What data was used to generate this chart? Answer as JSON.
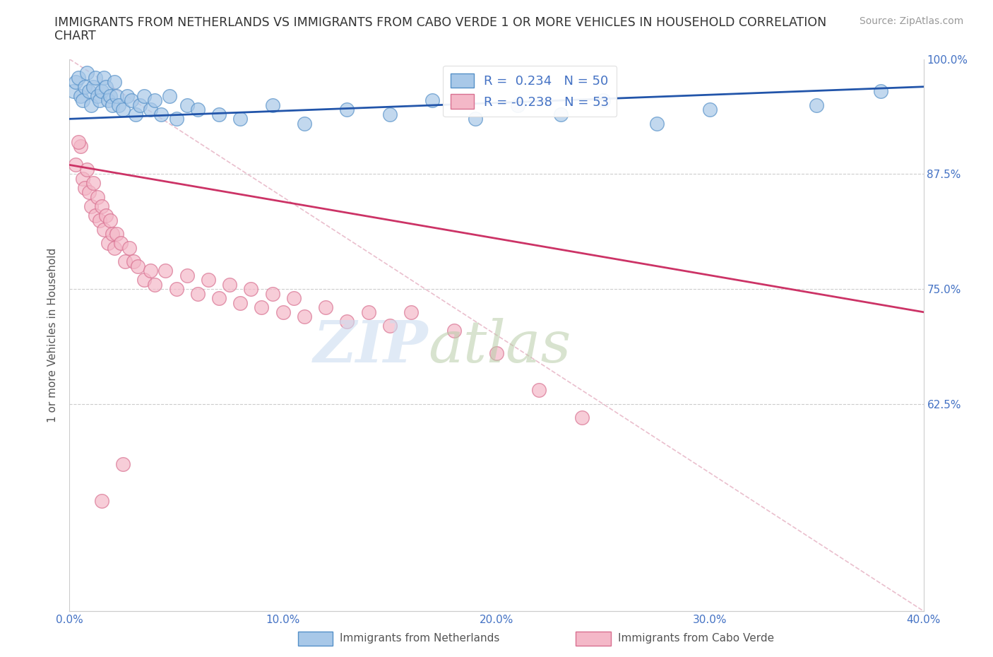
{
  "title_line1": "IMMIGRANTS FROM NETHERLANDS VS IMMIGRANTS FROM CABO VERDE 1 OR MORE VEHICLES IN HOUSEHOLD CORRELATION",
  "title_line2": "CHART",
  "source": "Source: ZipAtlas.com",
  "ylabel": "1 or more Vehicles in Household",
  "xlim": [
    0.0,
    40.0
  ],
  "ylim": [
    40.0,
    100.0
  ],
  "xticks": [
    0.0,
    10.0,
    20.0,
    30.0,
    40.0
  ],
  "xtick_labels": [
    "0.0%",
    "10.0%",
    "20.0%",
    "30.0%",
    "40.0%"
  ],
  "ytick_positions": [
    62.5,
    75.0,
    87.5,
    100.0
  ],
  "ytick_labels": [
    "62.5%",
    "75.0%",
    "87.5%",
    "100.0%"
  ],
  "color_netherlands": "#a8c8e8",
  "color_cabo_verde": "#f4b8c8",
  "edge_netherlands": "#5590c8",
  "edge_cabo_verde": "#d87090",
  "trendline_netherlands": "#2255aa",
  "trendline_cabo_verde": "#cc3366",
  "diagonal_color": "#e8b8c8",
  "R_netherlands": 0.234,
  "N_netherlands": 50,
  "R_cabo_verde": -0.238,
  "N_cabo_verde": 53,
  "background_color": "#ffffff",
  "grid_color": "#cccccc",
  "nl_x": [
    0.2,
    0.3,
    0.4,
    0.5,
    0.6,
    0.7,
    0.8,
    0.9,
    1.0,
    1.1,
    1.2,
    1.3,
    1.4,
    1.5,
    1.6,
    1.7,
    1.8,
    1.9,
    2.0,
    2.1,
    2.2,
    2.3,
    2.5,
    2.7,
    2.9,
    3.1,
    3.3,
    3.5,
    3.8,
    4.0,
    4.3,
    4.7,
    5.0,
    5.5,
    6.0,
    7.0,
    8.0,
    9.5,
    11.0,
    13.0,
    15.0,
    17.0,
    19.0,
    21.0,
    23.0,
    25.0,
    27.5,
    30.0,
    35.0,
    38.0
  ],
  "nl_y": [
    96.5,
    97.5,
    98.0,
    96.0,
    95.5,
    97.0,
    98.5,
    96.5,
    95.0,
    97.0,
    98.0,
    96.0,
    95.5,
    96.5,
    98.0,
    97.0,
    95.5,
    96.0,
    95.0,
    97.5,
    96.0,
    95.0,
    94.5,
    96.0,
    95.5,
    94.0,
    95.0,
    96.0,
    94.5,
    95.5,
    94.0,
    96.0,
    93.5,
    95.0,
    94.5,
    94.0,
    93.5,
    95.0,
    93.0,
    94.5,
    94.0,
    95.5,
    93.5,
    95.0,
    94.0,
    95.5,
    93.0,
    94.5,
    95.0,
    96.5
  ],
  "cv_x": [
    0.3,
    0.5,
    0.6,
    0.7,
    0.8,
    0.9,
    1.0,
    1.1,
    1.2,
    1.3,
    1.4,
    1.5,
    1.6,
    1.7,
    1.8,
    1.9,
    2.0,
    2.1,
    2.2,
    2.4,
    2.6,
    2.8,
    3.0,
    3.2,
    3.5,
    3.8,
    4.0,
    4.5,
    5.0,
    5.5,
    6.0,
    6.5,
    7.0,
    7.5,
    8.0,
    8.5,
    9.0,
    9.5,
    10.0,
    10.5,
    11.0,
    12.0,
    13.0,
    14.0,
    15.0,
    16.0,
    18.0,
    20.0,
    22.0,
    24.0,
    2.5,
    1.5,
    0.4
  ],
  "cv_y": [
    88.5,
    90.5,
    87.0,
    86.0,
    88.0,
    85.5,
    84.0,
    86.5,
    83.0,
    85.0,
    82.5,
    84.0,
    81.5,
    83.0,
    80.0,
    82.5,
    81.0,
    79.5,
    81.0,
    80.0,
    78.0,
    79.5,
    78.0,
    77.5,
    76.0,
    77.0,
    75.5,
    77.0,
    75.0,
    76.5,
    74.5,
    76.0,
    74.0,
    75.5,
    73.5,
    75.0,
    73.0,
    74.5,
    72.5,
    74.0,
    72.0,
    73.0,
    71.5,
    72.5,
    71.0,
    72.5,
    70.5,
    68.0,
    64.0,
    61.0,
    56.0,
    52.0,
    91.0
  ]
}
